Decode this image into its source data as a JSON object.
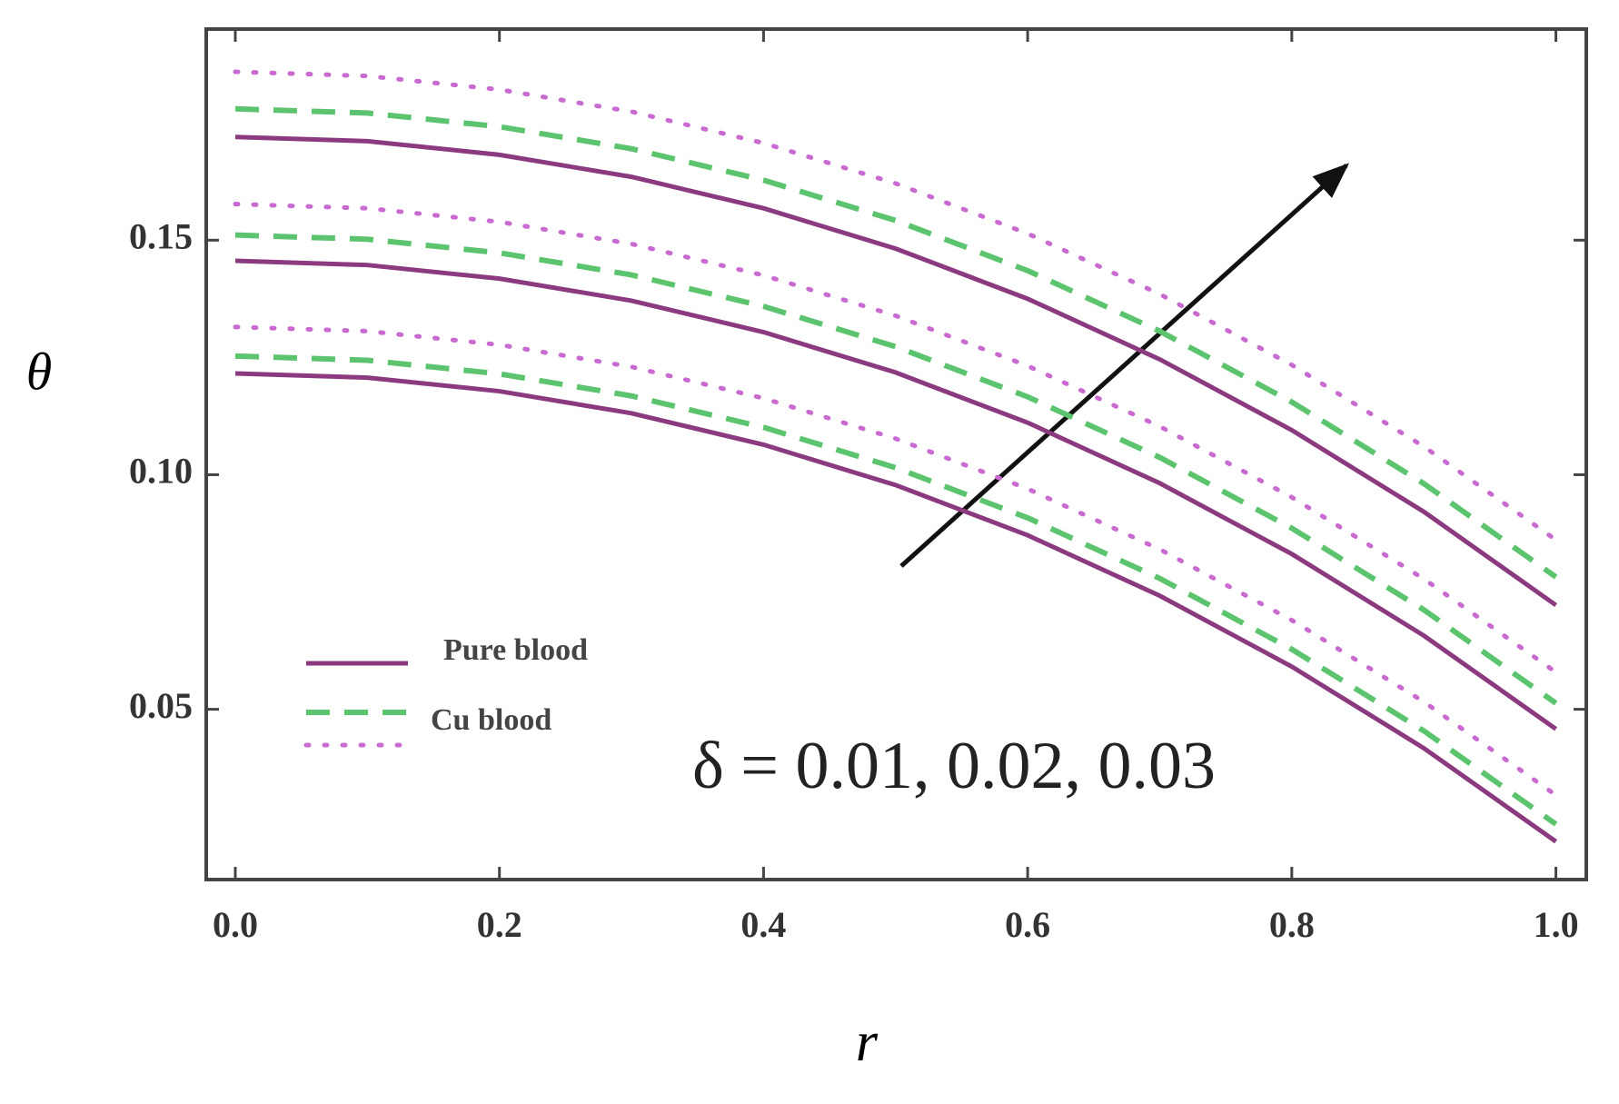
{
  "chart_data": {
    "type": "line",
    "xlabel": "r",
    "ylabel": "θ",
    "annotation": "δ = 0.01, 0.02, 0.03",
    "x": [
      0,
      0.1,
      0.2,
      0.3,
      0.4,
      0.5,
      0.6,
      0.7,
      0.8,
      0.9,
      1.0
    ],
    "xlim": [
      -0.022,
      1.023
    ],
    "ylim": [
      0.0137,
      0.195
    ],
    "xticks": [
      {
        "value": 0,
        "label": "0.0"
      },
      0.2,
      0.4,
      0.6,
      0.8,
      {
        "value": 1,
        "label": "1.0"
      }
    ],
    "yticks": [
      0.05,
      {
        "value": 0.1,
        "label": "0.10"
      },
      0.15
    ],
    "grid": false,
    "series": [
      {
        "name": "Pure blood",
        "style": "solid",
        "color": "#8b3a80",
        "values": [
          0.1216,
          0.1207,
          0.1178,
          0.1131,
          0.1064,
          0.0978,
          0.0871,
          0.0742,
          0.0591,
          0.0417,
          0.0218
        ]
      },
      {
        "name": "Cu blood",
        "style": "dashed",
        "color": "#5cc46e",
        "values": [
          0.1253,
          0.1244,
          0.1215,
          0.1168,
          0.1101,
          0.1015,
          0.0908,
          0.0779,
          0.0628,
          0.0454,
          0.0255
        ]
      },
      {
        "name": null,
        "style": "dotted",
        "color": "#c86ad0",
        "values": [
          0.1315,
          0.1306,
          0.1277,
          0.123,
          0.1163,
          0.1077,
          0.097,
          0.0841,
          0.069,
          0.0516,
          0.0317
        ]
      },
      {
        "name": "Pure blood",
        "style": "solid",
        "color": "#8b3a80",
        "values": [
          0.1456,
          0.1447,
          0.1418,
          0.1371,
          0.1304,
          0.1218,
          0.1111,
          0.0982,
          0.0831,
          0.0657,
          0.0458
        ]
      },
      {
        "name": "Cu blood",
        "style": "dashed",
        "color": "#5cc46e",
        "values": [
          0.1511,
          0.1502,
          0.1473,
          0.1426,
          0.1359,
          0.1273,
          0.1166,
          0.1037,
          0.0886,
          0.0712,
          0.0513
        ]
      },
      {
        "name": null,
        "style": "dotted",
        "color": "#c86ad0",
        "values": [
          0.1577,
          0.1568,
          0.1539,
          0.1492,
          0.1425,
          0.1339,
          0.1232,
          0.1103,
          0.0952,
          0.0778,
          0.0579
        ]
      },
      {
        "name": "Pure blood",
        "style": "solid",
        "color": "#8b3a80",
        "values": [
          0.172,
          0.1711,
          0.1682,
          0.1635,
          0.1568,
          0.1482,
          0.1375,
          0.1246,
          0.1095,
          0.0921,
          0.0722
        ]
      },
      {
        "name": "Cu blood",
        "style": "dashed",
        "color": "#5cc46e",
        "values": [
          0.178,
          0.1771,
          0.1742,
          0.1695,
          0.1628,
          0.1542,
          0.1435,
          0.1306,
          0.1155,
          0.0981,
          0.0782
        ]
      },
      {
        "name": null,
        "style": "dotted",
        "color": "#c86ad0",
        "values": [
          0.1859,
          0.185,
          0.1821,
          0.1774,
          0.1707,
          0.1621,
          0.1514,
          0.1385,
          0.1234,
          0.106,
          0.0861
        ]
      }
    ]
  }
}
